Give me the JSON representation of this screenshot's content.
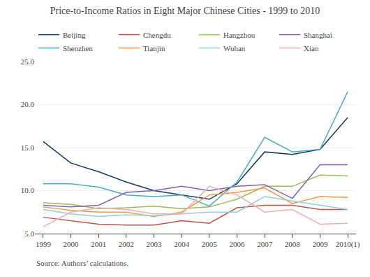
{
  "chart_data": {
    "type": "line",
    "title": "Price-to-Income Ratios in Eight Major Chinese Cities - 1999 to 2010",
    "annotations": [
      "Source: Authors’ calculations."
    ],
    "categories": [
      "1999",
      "2000",
      "2001",
      "2002",
      "2003",
      "2004",
      "2005",
      "2006",
      "2007",
      "2008",
      "2009",
      "2010(1)"
    ],
    "series": [
      {
        "name": "Beijing",
        "color": "#17375E",
        "values": [
          15.7,
          13.2,
          12.2,
          11.0,
          10.0,
          9.5,
          9.0,
          10.8,
          14.5,
          14.2,
          14.8,
          18.5
        ]
      },
      {
        "name": "Chengdu",
        "color": "#C0504D",
        "values": [
          6.9,
          6.5,
          6.1,
          6.0,
          6.0,
          6.5,
          6.2,
          8.0,
          8.3,
          8.3,
          7.8,
          7.8
        ]
      },
      {
        "name": "Hangzhou",
        "color": "#9BBB59",
        "values": [
          8.6,
          8.4,
          7.9,
          8.0,
          8.2,
          7.9,
          8.1,
          9.0,
          10.5,
          10.5,
          11.8,
          11.7
        ]
      },
      {
        "name": "Shanghai",
        "color": "#8064A2",
        "values": [
          8.3,
          8.1,
          8.3,
          9.8,
          10.0,
          10.5,
          10.0,
          10.5,
          10.7,
          9.1,
          13.0,
          13.0
        ]
      },
      {
        "name": "Shenzhen",
        "color": "#4BACC6",
        "values": [
          10.8,
          10.8,
          10.4,
          9.5,
          9.3,
          9.5,
          8.2,
          11.0,
          16.2,
          14.5,
          14.8,
          21.5
        ]
      },
      {
        "name": "Tianjin",
        "color": "#F79646",
        "values": [
          8.1,
          7.7,
          7.5,
          7.5,
          7.0,
          7.5,
          9.5,
          9.8,
          10.3,
          8.5,
          9.3,
          9.2
        ]
      },
      {
        "name": "Wuhan",
        "color": "#92CDDC",
        "values": [
          7.8,
          7.3,
          7.0,
          7.2,
          7.1,
          7.3,
          7.5,
          7.5,
          9.3,
          8.8,
          8.3,
          7.8
        ]
      },
      {
        "name": "Xian",
        "color": "#F2AEAC",
        "values": [
          5.8,
          7.5,
          8.0,
          7.8,
          7.3,
          7.3,
          10.5,
          9.5,
          7.5,
          7.8,
          6.1,
          6.2
        ]
      }
    ],
    "ylim": [
      5.0,
      25.0
    ],
    "yticks": [
      {
        "value": 5.0,
        "label": "5.0"
      },
      {
        "value": 10.0,
        "label": "10.0"
      },
      {
        "value": 15.0,
        "label": "15.0"
      },
      {
        "value": 20.0,
        "label": "20.0"
      },
      {
        "value": 25.0,
        "label": "25.0"
      }
    ],
    "grid": true,
    "legend": "upper left"
  }
}
